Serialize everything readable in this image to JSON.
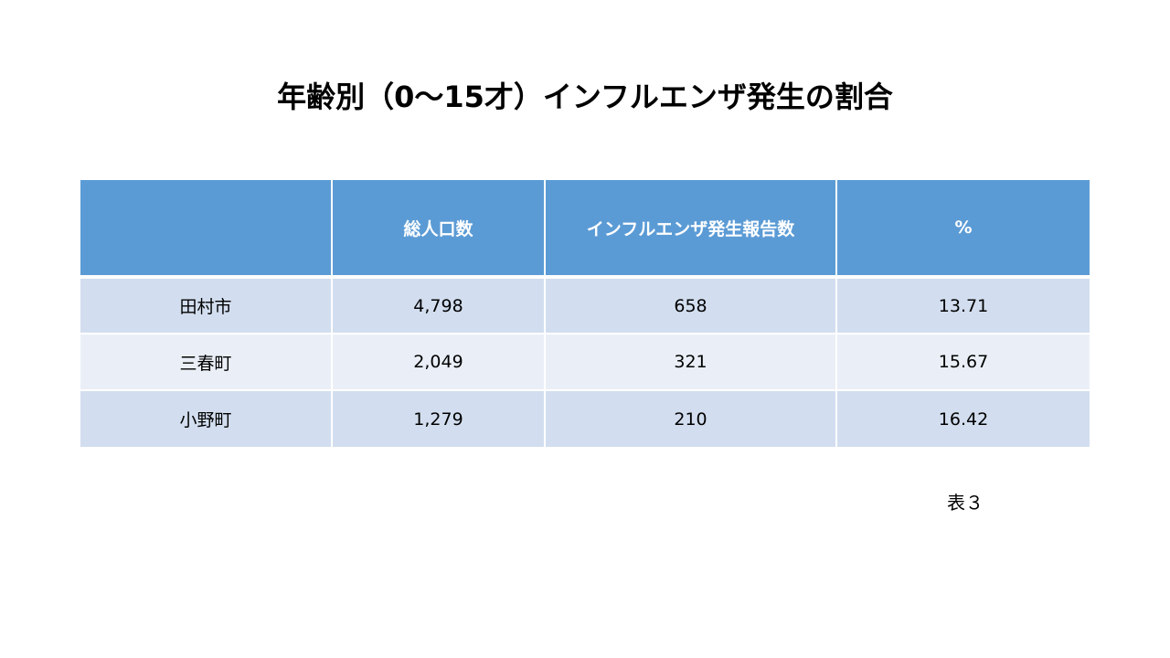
{
  "title": "年齢別（0〜15才）インフルエンザ発生の割合",
  "table": {
    "headers": [
      "",
      "総人口数",
      "インフルエンザ発生報告数",
      "%"
    ],
    "rows": [
      [
        "田村市",
        "4,798",
        "658",
        "13.71"
      ],
      [
        "三春町",
        "2,049",
        "321",
        "15.67"
      ],
      [
        "小野町",
        "1,279",
        "210",
        "16.42"
      ]
    ]
  },
  "table_label": "表３",
  "colors": {
    "header_bg": "#5b9bd5",
    "row_odd_bg": "#d2deef",
    "row_even_bg": "#eaeff7"
  },
  "chart_data": {
    "type": "table",
    "title": "年齢別（0〜15才）インフルエンザ発生の割合",
    "columns": [
      "",
      "総人口数",
      "インフルエンザ発生報告数",
      "%"
    ],
    "rows": [
      {
        "label": "田村市",
        "total_population": 4798,
        "influenza_reports": 658,
        "percent": 13.71
      },
      {
        "label": "三春町",
        "total_population": 2049,
        "influenza_reports": 321,
        "percent": 15.67
      },
      {
        "label": "小野町",
        "total_population": 1279,
        "influenza_reports": 210,
        "percent": 16.42
      }
    ]
  }
}
